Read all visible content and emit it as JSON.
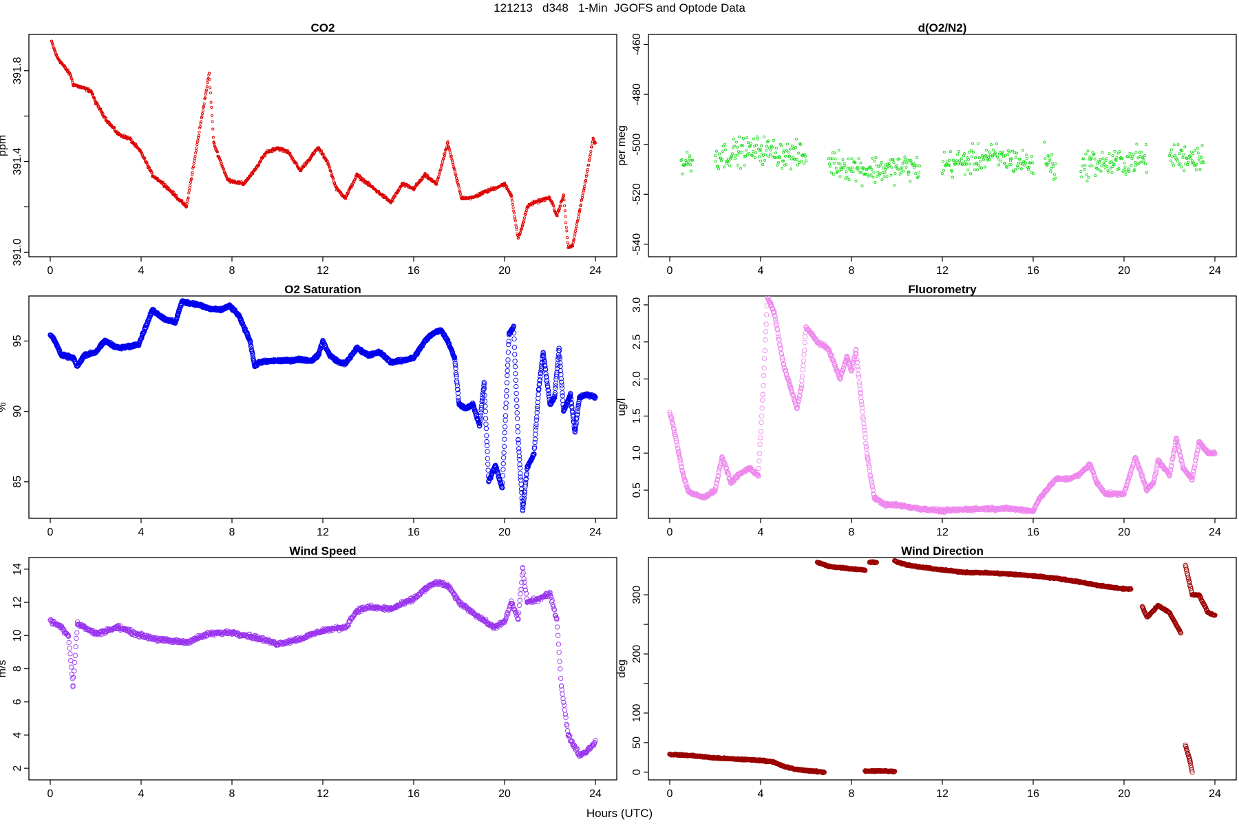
{
  "figure": {
    "title": "121213   d348   1-Min  JGOFS and Optode Data",
    "xlabel": "Hours (UTC)"
  },
  "chart_data": [
    {
      "type": "scatter",
      "title": "CO2",
      "ylabel": "ppm",
      "xlim": [
        0,
        24
      ],
      "ylim": [
        390.98,
        391.96
      ],
      "xticks": [
        0,
        4,
        8,
        12,
        16,
        20,
        24
      ],
      "yticks": [
        391.0,
        391.2,
        391.4,
        391.6,
        391.8
      ],
      "yticklabels": [
        "391.0",
        "",
        "391.4",
        "",
        "391.8"
      ],
      "color": "#dd0000",
      "marker_size": 1.6,
      "noise": 0.01,
      "dot_step": 0.02,
      "series": [
        {
          "x": [
            0.05,
            0.3,
            0.6,
            0.9,
            1.0,
            1.8,
            2.0,
            2.5,
            3.0,
            3.5,
            4.0,
            4.5,
            5.0,
            5.5,
            6.0,
            7.0,
            7.2,
            7.8,
            8.5,
            9.0,
            9.5,
            10.0,
            10.5,
            11.0,
            11.8,
            12.2,
            12.6,
            13.0,
            13.5,
            14.0,
            14.5,
            15.0,
            15.5,
            16.0,
            16.5,
            17.0,
            17.5,
            18.1,
            18.6,
            19.0,
            19.5,
            20.0,
            20.3,
            20.6,
            20.8,
            21.0,
            21.3,
            22.0,
            22.3,
            22.6,
            22.8,
            23.0,
            23.3,
            23.5,
            23.9,
            24.0
          ],
          "y": [
            391.93,
            391.86,
            391.82,
            391.78,
            391.74,
            391.71,
            391.66,
            391.58,
            391.52,
            391.5,
            391.44,
            391.34,
            391.3,
            391.25,
            391.2,
            391.79,
            391.48,
            391.32,
            391.3,
            391.36,
            391.44,
            391.46,
            391.44,
            391.36,
            391.46,
            391.4,
            391.28,
            391.24,
            391.34,
            391.3,
            391.26,
            391.22,
            391.3,
            391.28,
            391.34,
            391.3,
            391.48,
            391.24,
            391.24,
            391.26,
            391.28,
            391.3,
            391.25,
            391.06,
            391.12,
            391.2,
            391.22,
            391.24,
            391.16,
            391.25,
            391.02,
            391.03,
            391.18,
            391.28,
            391.5,
            391.48
          ]
        }
      ]
    },
    {
      "type": "scatter",
      "title": "d(O2/N2)",
      "ylabel": "per meg",
      "xlim": [
        0,
        24
      ],
      "ylim": [
        -545,
        -456
      ],
      "xticks": [
        0,
        4,
        8,
        12,
        16,
        20,
        24
      ],
      "yticks": [
        -540,
        -520,
        -500,
        -480,
        -460
      ],
      "yticklabels": [
        "-540",
        "-520",
        "-500",
        "-480",
        "-460"
      ],
      "color": "#22dd22",
      "marker_size": 1.6,
      "noise": 8,
      "dot_step": 0.03,
      "series": [
        {
          "x": [
            0.0,
            0.5,
            1.0,
            1.2,
            2.0,
            3.0,
            4.0,
            5.0,
            6.0,
            6.1,
            7.0,
            7.5,
            8.5,
            9.5,
            10.5,
            11.0,
            11.2,
            12.0,
            13.0,
            14.0,
            15.0,
            16.0,
            16.2,
            16.5,
            17.0,
            17.3,
            17.6,
            18.1,
            18.5,
            19.5,
            20.5,
            21.0,
            21.2,
            22.0,
            22.5,
            23.0,
            23.5,
            24.0
          ],
          "y": [
            null,
            -508,
            -506,
            null,
            -505,
            -503,
            -502,
            -504,
            -505,
            null,
            -507,
            -508,
            -510,
            -510,
            -509,
            -510,
            null,
            -508,
            -507,
            -505,
            -506,
            -508,
            null,
            -505,
            -510,
            null,
            null,
            -510,
            -507,
            -508,
            -506,
            -506,
            null,
            -505,
            -505,
            -505,
            -505,
            null
          ]
        }
      ]
    },
    {
      "type": "scatter",
      "title": "O2 Saturation",
      "ylabel": "%",
      "xlim": [
        0,
        24
      ],
      "ylim": [
        82.4,
        98.2
      ],
      "xticks": [
        0,
        4,
        8,
        12,
        16,
        20,
        24
      ],
      "yticks": [
        85,
        90,
        95
      ],
      "yticklabels": [
        "85",
        "90",
        "95"
      ],
      "color": "#0000ee",
      "marker_size": 3.2,
      "noise": 0.15,
      "dot_step": 0.012,
      "series": [
        {
          "x": [
            0.0,
            0.2,
            0.5,
            1.0,
            1.2,
            1.5,
            2.0,
            2.4,
            3.0,
            3.5,
            3.9,
            4.2,
            4.5,
            5.0,
            5.5,
            5.8,
            6.5,
            7.0,
            7.5,
            7.9,
            8.3,
            8.8,
            9.0,
            9.2,
            10.0,
            10.5,
            11.0,
            11.5,
            11.8,
            12.0,
            12.3,
            12.7,
            13.0,
            13.5,
            14.0,
            14.5,
            15.0,
            15.5,
            16.0,
            16.5,
            16.8,
            17.2,
            17.5,
            17.8,
            18.0,
            18.3,
            18.6,
            18.9,
            19.1,
            19.3,
            19.6,
            19.9,
            20.2,
            20.4,
            20.6,
            20.8,
            21.0,
            21.3,
            21.5,
            21.7,
            22.0,
            22.2,
            22.4,
            22.6,
            22.9,
            23.1,
            23.3,
            23.6,
            24.0
          ],
          "y": [
            95.5,
            95.0,
            94.0,
            93.8,
            93.2,
            94.0,
            94.2,
            95.0,
            94.5,
            94.6,
            94.8,
            96.0,
            97.2,
            96.6,
            96.3,
            97.8,
            97.6,
            97.3,
            97.2,
            97.5,
            96.8,
            95.0,
            93.2,
            93.5,
            93.6,
            93.6,
            93.7,
            93.6,
            94.0,
            95.0,
            94.0,
            93.5,
            93.4,
            94.5,
            94.0,
            94.2,
            93.5,
            93.6,
            93.8,
            95.0,
            95.5,
            95.8,
            95.0,
            93.8,
            90.5,
            90.2,
            90.5,
            89.0,
            92.0,
            85.0,
            86.2,
            84.5,
            95.5,
            96.0,
            88.0,
            83.0,
            86.0,
            87.0,
            91.5,
            94.2,
            90.5,
            91.0,
            94.5,
            90.0,
            91.2,
            88.5,
            91.0,
            91.2,
            91.0
          ]
        }
      ]
    },
    {
      "type": "scatter",
      "title": "Fluorometry",
      "ylabel": "ug/l",
      "xlim": [
        0,
        24
      ],
      "ylim": [
        0.12,
        3.12
      ],
      "xticks": [
        0,
        4,
        8,
        12,
        16,
        20,
        24
      ],
      "yticks": [
        0.5,
        1.0,
        1.5,
        2.0,
        2.5,
        3.0
      ],
      "yticklabels": [
        "0.5",
        "1.0",
        "1.5",
        "2.0",
        "2.5",
        "3.0"
      ],
      "color": "#ee88ee",
      "marker_size": 3.2,
      "noise": 0.03,
      "dot_step": 0.018,
      "series": [
        {
          "x": [
            0.0,
            0.2,
            0.4,
            0.6,
            0.8,
            1.0,
            1.5,
            2.0,
            2.3,
            2.7,
            3.0,
            3.5,
            3.9,
            4.1,
            4.3,
            4.6,
            5.0,
            5.3,
            5.6,
            5.8,
            6.0,
            6.5,
            7.0,
            7.5,
            7.8,
            8.0,
            8.2,
            8.4,
            8.7,
            9.0,
            9.5,
            10.0,
            11.0,
            12.0,
            13.0,
            14.0,
            15.0,
            16.0,
            16.3,
            17.0,
            17.5,
            18.0,
            18.5,
            18.8,
            19.2,
            20.0,
            20.5,
            21.0,
            21.3,
            21.5,
            22.0,
            22.3,
            22.6,
            23.0,
            23.3,
            23.7,
            24.0
          ],
          "y": [
            1.55,
            1.3,
            1.0,
            0.7,
            0.5,
            0.45,
            0.4,
            0.5,
            0.95,
            0.6,
            0.7,
            0.8,
            0.7,
            1.8,
            3.1,
            2.9,
            2.2,
            1.9,
            1.6,
            1.9,
            2.7,
            2.5,
            2.4,
            2.0,
            2.3,
            2.1,
            2.4,
            1.8,
            0.95,
            0.4,
            0.3,
            0.3,
            0.25,
            0.22,
            0.24,
            0.25,
            0.25,
            0.22,
            0.4,
            0.65,
            0.65,
            0.7,
            0.85,
            0.6,
            0.45,
            0.45,
            0.95,
            0.5,
            0.6,
            0.9,
            0.7,
            1.2,
            0.8,
            0.65,
            1.15,
            1.0,
            1.0
          ]
        }
      ]
    },
    {
      "type": "scatter",
      "title": "Wind Speed",
      "ylabel": "m/s",
      "xlim": [
        0,
        24
      ],
      "ylim": [
        1.3,
        14.7
      ],
      "xticks": [
        0,
        4,
        8,
        12,
        16,
        20,
        24
      ],
      "yticks": [
        2,
        4,
        6,
        8,
        10,
        12,
        14
      ],
      "yticklabels": [
        "2",
        "4",
        "6",
        "8",
        "10",
        "12",
        "14"
      ],
      "color": "#9933ee",
      "marker_size": 3.2,
      "noise": 0.18,
      "dot_step": 0.025,
      "series": [
        {
          "x": [
            0.0,
            0.5,
            0.8,
            1.0,
            1.2,
            1.5,
            2.0,
            3.0,
            4.0,
            5.0,
            6.0,
            7.0,
            8.0,
            9.0,
            10.0,
            11.0,
            12.0,
            13.0,
            13.5,
            14.0,
            15.0,
            16.0,
            16.5,
            17.0,
            17.5,
            18.0,
            19.0,
            19.5,
            20.0,
            20.3,
            20.6,
            20.8,
            21.0,
            21.5,
            22.0,
            22.3,
            22.5,
            22.8,
            23.0,
            23.3,
            23.6,
            24.0
          ],
          "y": [
            10.9,
            10.5,
            10.0,
            7.0,
            10.7,
            10.5,
            10.1,
            10.5,
            10.0,
            9.7,
            9.6,
            10.1,
            10.2,
            9.9,
            9.5,
            9.8,
            10.3,
            10.5,
            11.5,
            11.7,
            11.6,
            12.2,
            12.8,
            13.2,
            13.0,
            12.0,
            11.0,
            10.5,
            10.8,
            12.0,
            11.0,
            14.0,
            12.0,
            12.2,
            12.5,
            11.0,
            7.0,
            4.0,
            3.5,
            2.8,
            3.0,
            3.6
          ]
        }
      ]
    },
    {
      "type": "scatter",
      "title": "Wind Direction",
      "ylabel": "deg",
      "xlim": [
        0,
        24
      ],
      "ylim": [
        -13,
        363
      ],
      "xticks": [
        0,
        4,
        8,
        12,
        16,
        20,
        24
      ],
      "yticks": [
        0,
        50,
        100,
        150,
        200,
        250,
        300
      ],
      "yticklabels": [
        "0",
        "50",
        "100",
        "",
        "200",
        "",
        "300"
      ],
      "color": "#990000",
      "marker_size": 3.2,
      "noise": 1.5,
      "dot_step": 0.02,
      "series": [
        {
          "x": [
            0.0,
            1.0,
            2.0,
            3.0,
            4.0,
            4.5,
            5.0,
            5.5,
            6.0,
            6.5,
            6.8,
            6.9,
            8.6,
            9.0,
            9.5,
            9.9,
            10.0,
            6.5,
            7.0,
            7.5,
            8.0,
            8.6,
            8.7,
            8.8,
            9.1,
            9.2,
            9.9,
            10.5,
            11.0,
            12.0,
            13.0,
            14.0,
            15.0,
            16.0,
            17.0,
            18.0,
            19.0,
            20.0,
            20.3,
            20.4,
            20.8,
            21.0,
            21.1,
            21.5,
            22.0,
            22.5,
            22.6,
            22.7,
            23.0,
            23.3,
            23.7,
            24.0,
            24.1,
            22.7,
            22.9,
            23.0
          ],
          "y": [
            30,
            28,
            24,
            22,
            20,
            18,
            10,
            5,
            3,
            1,
            0,
            null,
            2,
            2,
            2,
            1,
            null,
            355,
            348,
            346,
            344,
            342,
            null,
            355,
            355,
            null,
            357,
            350,
            347,
            342,
            338,
            337,
            335,
            332,
            328,
            322,
            315,
            310,
            310,
            null,
            280,
            263,
            265,
            282,
            270,
            235,
            null,
            350,
            300,
            300,
            270,
            265,
            null,
            45,
            20,
            0
          ]
        }
      ]
    }
  ]
}
